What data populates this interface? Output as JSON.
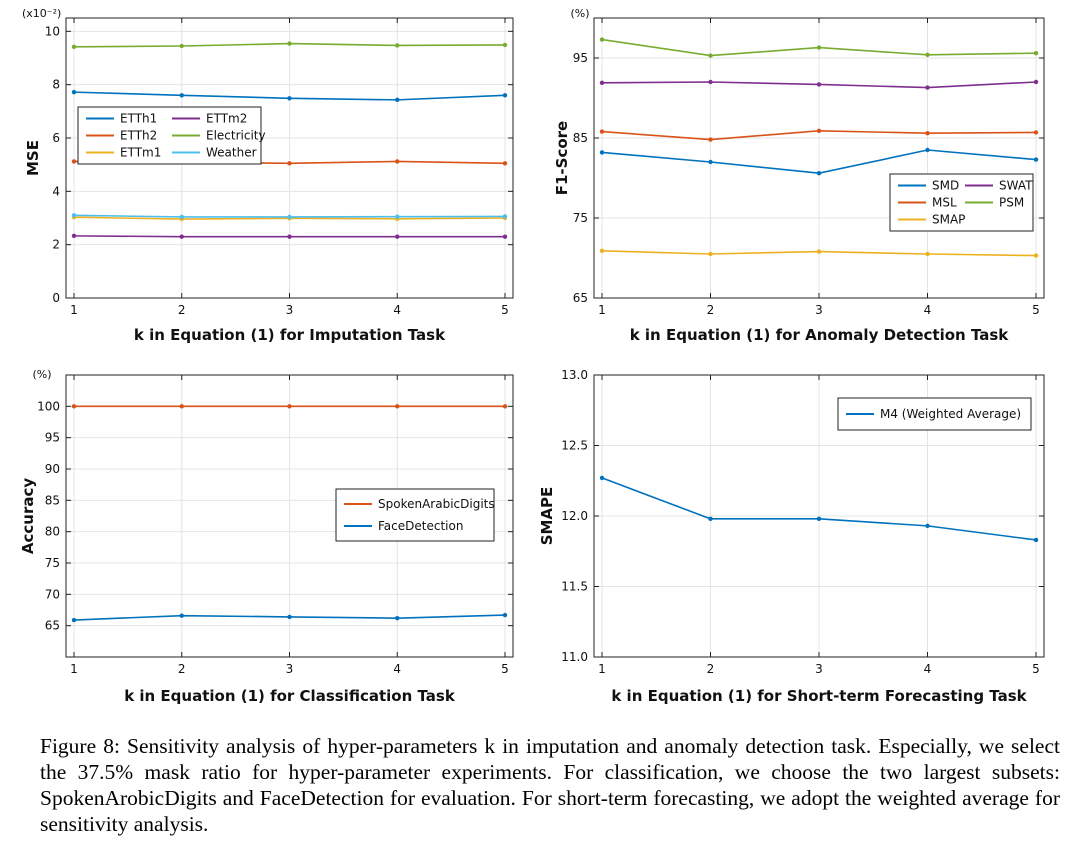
{
  "caption": "Figure 8: Sensitivity analysis of hyper-parameters k in imputation and anomaly detection task. Especially, we select the 37.5% mask ratio for hyper-parameter experiments. For classification, we choose the two largest subsets: SpokenArobicDigits and FaceDetection for evaluation. For short-term forecasting, we adopt the weighted average for sensitivity analysis.",
  "chart_data": [
    {
      "type": "line",
      "title": "",
      "xlabel": "k in Equation (1) for Imputation Task",
      "ylabel": "MSE",
      "y_multiplier": "(x10⁻²)",
      "x": [
        1,
        2,
        3,
        4,
        5
      ],
      "ylim": [
        0,
        10.5
      ],
      "yticks": [
        0,
        2,
        4,
        6,
        8,
        10
      ],
      "ytick_labels": [
        "0",
        "2",
        "4",
        "6",
        "8",
        "10"
      ],
      "grid": true,
      "legend": "center-left",
      "legend_columns": 2,
      "series": [
        {
          "name": "ETTh1",
          "color": "#0072BD",
          "values": [
            7.72,
            7.6,
            7.49,
            7.43,
            7.6
          ]
        },
        {
          "name": "ETTm2",
          "color": "#7E2F8E",
          "values": [
            2.33,
            2.3,
            2.3,
            2.3,
            2.3
          ]
        },
        {
          "name": "ETTh2",
          "color": "#D95319",
          "values": [
            5.12,
            5.1,
            5.05,
            5.12,
            5.05
          ]
        },
        {
          "name": "Electricity",
          "color": "#77AC30",
          "values": [
            9.42,
            9.45,
            9.54,
            9.47,
            9.49
          ]
        },
        {
          "name": "ETTm1",
          "color": "#EDB120",
          "values": [
            3.03,
            2.96,
            2.99,
            2.97,
            3.0
          ]
        },
        {
          "name": "Weather",
          "color": "#4DBEEE",
          "values": [
            3.1,
            3.04,
            3.04,
            3.05,
            3.06
          ]
        }
      ]
    },
    {
      "type": "line",
      "title": "",
      "xlabel": "k in Equation (1) for Anomaly Detection Task",
      "ylabel": "F1-Score",
      "y_multiplier": "(%)",
      "x": [
        1,
        2,
        3,
        4,
        5
      ],
      "ylim": [
        65,
        100
      ],
      "yticks": [
        65,
        75,
        85,
        95
      ],
      "ytick_labels": [
        "65",
        "75",
        "85",
        "95"
      ],
      "grid": true,
      "legend": "center-right",
      "legend_columns": 2,
      "series": [
        {
          "name": "SMD",
          "color": "#0072BD",
          "values": [
            83.2,
            82.0,
            80.6,
            83.5,
            82.3
          ]
        },
        {
          "name": "SWAT",
          "color": "#7E2F8E",
          "values": [
            91.9,
            92.0,
            91.7,
            91.3,
            92.0
          ]
        },
        {
          "name": "MSL",
          "color": "#D95319",
          "values": [
            85.8,
            84.8,
            85.9,
            85.6,
            85.7
          ]
        },
        {
          "name": "PSM",
          "color": "#77AC30",
          "values": [
            97.3,
            95.3,
            96.3,
            95.4,
            95.6
          ]
        },
        {
          "name": "SMAP",
          "color": "#EDB120",
          "values": [
            70.9,
            70.5,
            70.8,
            70.5,
            70.3
          ]
        }
      ]
    },
    {
      "type": "line",
      "title": "",
      "xlabel": "k in Equation (1) for Classification Task",
      "ylabel": "Accuracy",
      "y_multiplier": "(%)",
      "x": [
        1,
        2,
        3,
        4,
        5
      ],
      "ylim": [
        60,
        105
      ],
      "yticks": [
        65,
        70,
        75,
        80,
        85,
        90,
        95,
        100
      ],
      "ytick_labels": [
        "65",
        "70",
        "75",
        "80",
        "85",
        "90",
        "95",
        "100"
      ],
      "grid": true,
      "legend": "center-right",
      "legend_columns": 1,
      "series": [
        {
          "name": "SpokenArabicDigits",
          "color": "#D95319",
          "values": [
            100.0,
            100.0,
            100.0,
            100.0,
            100.0
          ]
        },
        {
          "name": "FaceDetection",
          "color": "#0072BD",
          "values": [
            65.9,
            66.6,
            66.4,
            66.2,
            66.7
          ]
        }
      ]
    },
    {
      "type": "line",
      "title": "",
      "xlabel": "k in Equation (1) for Short-term Forecasting Task",
      "ylabel": "SMAPE",
      "y_multiplier": "",
      "x": [
        1,
        2,
        3,
        4,
        5
      ],
      "ylim": [
        11.0,
        13.0
      ],
      "yticks": [
        11.0,
        11.5,
        12.0,
        12.5,
        13.0
      ],
      "ytick_labels": [
        "11.0",
        "11.5",
        "12.0",
        "12.5",
        "13.0"
      ],
      "grid": true,
      "legend": "top-right",
      "legend_columns": 1,
      "series": [
        {
          "name": "M4 (Weighted Average)",
          "color": "#0072BD",
          "values": [
            12.27,
            11.98,
            11.98,
            11.93,
            11.83
          ]
        }
      ]
    }
  ]
}
